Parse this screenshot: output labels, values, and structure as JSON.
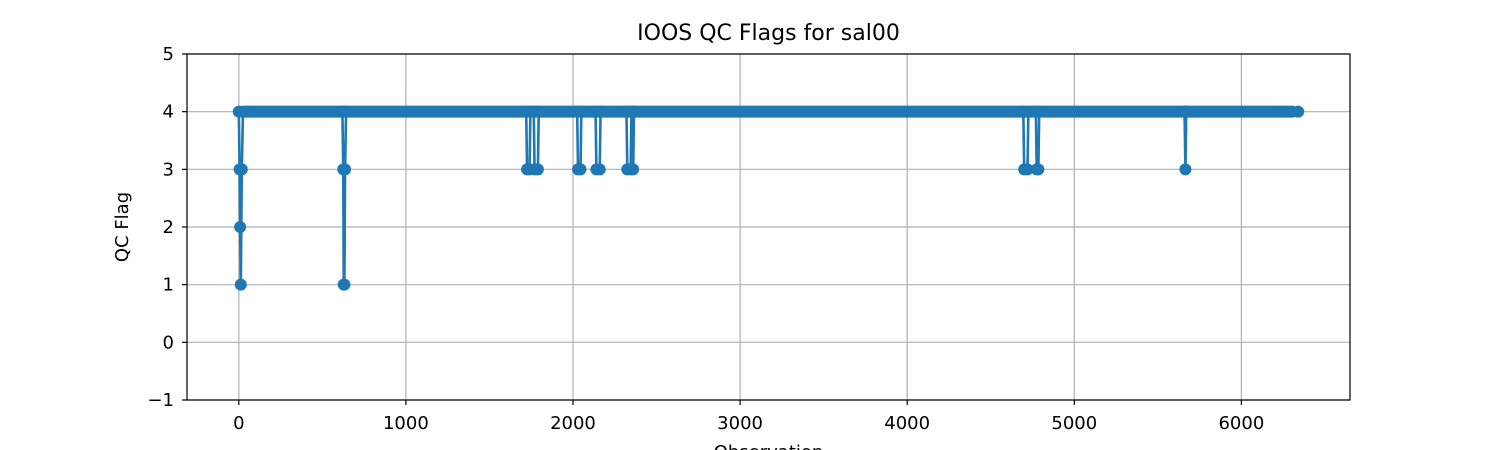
{
  "chart_data": {
    "type": "line",
    "title": "IOOS QC Flags for sal00",
    "xlabel": "Observation",
    "ylabel": "QC Flag",
    "xlim": [
      -310,
      6650
    ],
    "ylim": [
      -1,
      5
    ],
    "xticks": [
      0,
      1000,
      2000,
      3000,
      4000,
      5000,
      6000
    ],
    "yticks": [
      -1,
      0,
      1,
      2,
      3,
      4,
      5
    ],
    "xtick_labels": [
      "0",
      "1000",
      "2000",
      "3000",
      "4000",
      "5000",
      "6000"
    ],
    "ytick_labels": [
      "−1",
      "0",
      "1",
      "2",
      "3",
      "4",
      "5"
    ],
    "grid": true,
    "marker": "circle",
    "series": [
      {
        "color": "#1f77b4",
        "baseline": 4,
        "x_start": 0,
        "x_end": 6340,
        "values_note_excluded": true,
        "points": [
          [
            0,
            4
          ],
          [
            5,
            3
          ],
          [
            8,
            2
          ],
          [
            12,
            1
          ],
          [
            18,
            3
          ],
          [
            25,
            4
          ],
          [
            620,
            4
          ],
          [
            625,
            3
          ],
          [
            628,
            1
          ],
          [
            632,
            1
          ],
          [
            636,
            3
          ],
          [
            642,
            4
          ],
          [
            1720,
            4
          ],
          [
            1725,
            3
          ],
          [
            1740,
            3
          ],
          [
            1745,
            4
          ],
          [
            1765,
            4
          ],
          [
            1770,
            3
          ],
          [
            1790,
            3
          ],
          [
            1795,
            4
          ],
          [
            2025,
            4
          ],
          [
            2030,
            3
          ],
          [
            2045,
            3
          ],
          [
            2050,
            4
          ],
          [
            2135,
            4
          ],
          [
            2140,
            3
          ],
          [
            2160,
            3
          ],
          [
            2165,
            4
          ],
          [
            2320,
            4
          ],
          [
            2325,
            3
          ],
          [
            2345,
            3
          ],
          [
            2350,
            4
          ],
          [
            2355,
            4
          ],
          [
            2360,
            3
          ],
          [
            2365,
            4
          ],
          [
            4695,
            4
          ],
          [
            4700,
            3
          ],
          [
            4720,
            3
          ],
          [
            4725,
            4
          ],
          [
            4770,
            4
          ],
          [
            4775,
            3
          ],
          [
            4785,
            3
          ],
          [
            4790,
            4
          ],
          [
            5660,
            4
          ],
          [
            5665,
            3
          ],
          [
            5670,
            4
          ],
          [
            6340,
            4
          ]
        ]
      }
    ]
  }
}
